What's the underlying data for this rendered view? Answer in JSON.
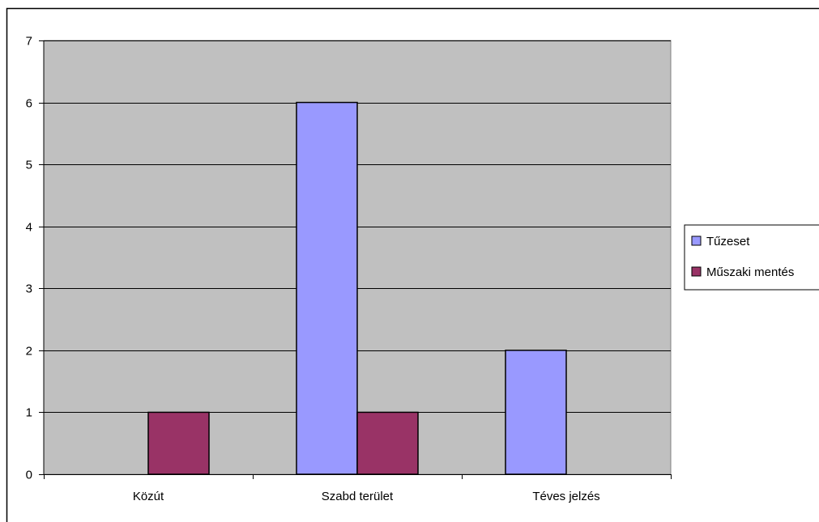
{
  "chart_data": {
    "type": "bar",
    "title": "",
    "xlabel": "",
    "ylabel": "",
    "categories": [
      "Közút",
      "Szabd terület",
      "Téves jelzés"
    ],
    "series": [
      {
        "name": "Tűzeset",
        "values": [
          0,
          6,
          2
        ],
        "color": "#9999FF"
      },
      {
        "name": "Műszaki mentés",
        "values": [
          1,
          1,
          0
        ],
        "color": "#993366"
      }
    ],
    "ylim": [
      0,
      7
    ],
    "yticks": [
      0,
      1,
      2,
      3,
      4,
      5,
      6,
      7
    ],
    "grid": true,
    "legend_position": "right",
    "plot_background": "#C0C0C0"
  }
}
